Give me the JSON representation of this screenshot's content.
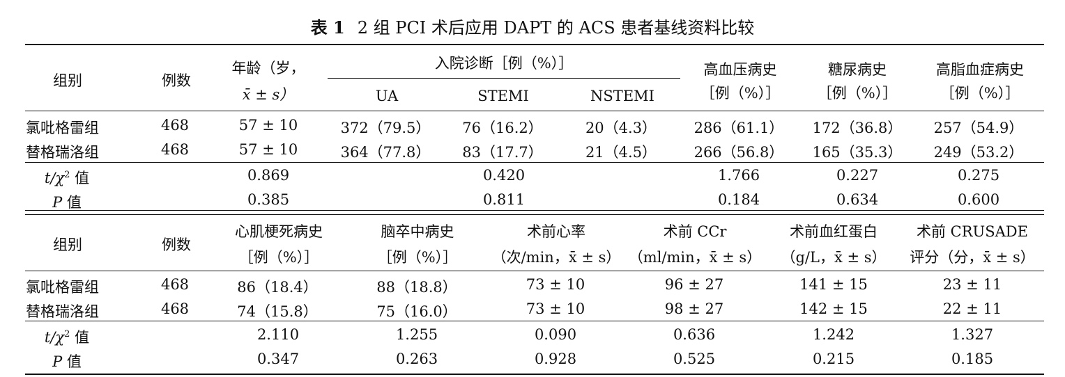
{
  "title": {
    "label": "表 1",
    "text": "2 组 PCI 术后应用 DAPT 的 ACS 患者基线资料比较"
  },
  "table1": {
    "headers": {
      "group": "组别",
      "count": "例数",
      "age_line1": "年龄（岁，",
      "age_line2": "x̄ ± s）",
      "diag": "入院诊断［例（%）］",
      "ua": "UA",
      "stemi": "STEMI",
      "nstemi": "NSTEMI",
      "htn_line1": "高血压病史",
      "htn_line2": "［例（%）］",
      "dm_line1": "糖尿病史",
      "dm_line2": "［例（%）］",
      "hl_line1": "高脂血症病史",
      "hl_line2": "［例（%）］"
    },
    "rows": [
      {
        "group": "氯吡格雷组",
        "count": "468",
        "age": "57 ± 10",
        "ua": "372（79.5）",
        "stemi": "76（16.2）",
        "nstemi": "20（4.3）",
        "htn": "286（61.1）",
        "dm": "172（36.8）",
        "hl": "257（54.9）"
      },
      {
        "group": "替格瑞洛组",
        "count": "468",
        "age": "57 ± 10",
        "ua": "364（77.8）",
        "stemi": "83（17.7）",
        "nstemi": "21（4.5）",
        "htn": "266（56.8）",
        "dm": "165（35.3）",
        "hl": "249（53.2）"
      }
    ],
    "stat_t": {
      "label_t": "t/χ",
      "label_sup": "2",
      "label_rest": " 值",
      "age": "0.869",
      "diag": "0.420",
      "htn": "1.766",
      "dm": "0.227",
      "hl": "0.275"
    },
    "stat_p": {
      "label_p": "P",
      "label_rest": " 值",
      "age": "0.385",
      "diag": "0.811",
      "htn": "0.184",
      "dm": "0.634",
      "hl": "0.600"
    }
  },
  "table2": {
    "headers": {
      "group": "组别",
      "count": "例数",
      "mi_line1": "心肌梗死病史",
      "mi_line2": "［例（%）］",
      "stroke_line1": "脑卒中病史",
      "stroke_line2": "［例（%）］",
      "hr_line1": "术前心率",
      "hr_line2": "（次/min，x̄ ± s）",
      "ccr_line1": "术前 CCr",
      "ccr_line2": "（ml/min，x̄ ± s）",
      "hb_line1": "术前血红蛋白",
      "hb_line2": "（g/L，x̄ ± s）",
      "crusade_line1": "术前 CRUSADE",
      "crusade_line2": "评分（分，x̄ ± s）"
    },
    "rows": [
      {
        "group": "氯吡格雷组",
        "count": "468",
        "mi": "86（18.4）",
        "stroke": "88（18.8）",
        "hr": "73 ± 10",
        "ccr": "96 ± 27",
        "hb": "141 ± 15",
        "crusade": "23 ± 11"
      },
      {
        "group": "替格瑞洛组",
        "count": "468",
        "mi": "74（15.8）",
        "stroke": "75（16.0）",
        "hr": "73 ± 10",
        "ccr": "98 ± 27",
        "hb": "142 ± 15",
        "crusade": "22 ± 11"
      }
    ],
    "stat_t": {
      "label_t": "t/χ",
      "label_sup": "2",
      "label_rest": " 值",
      "mi": "2.110",
      "stroke": "1.255",
      "hr": "0.090",
      "ccr": "0.636",
      "hb": "1.242",
      "crusade": "1.327"
    },
    "stat_p": {
      "label_p": "P",
      "label_rest": " 值",
      "mi": "0.347",
      "stroke": "0.263",
      "hr": "0.928",
      "ccr": "0.525",
      "hb": "0.215",
      "crusade": "0.185"
    }
  }
}
